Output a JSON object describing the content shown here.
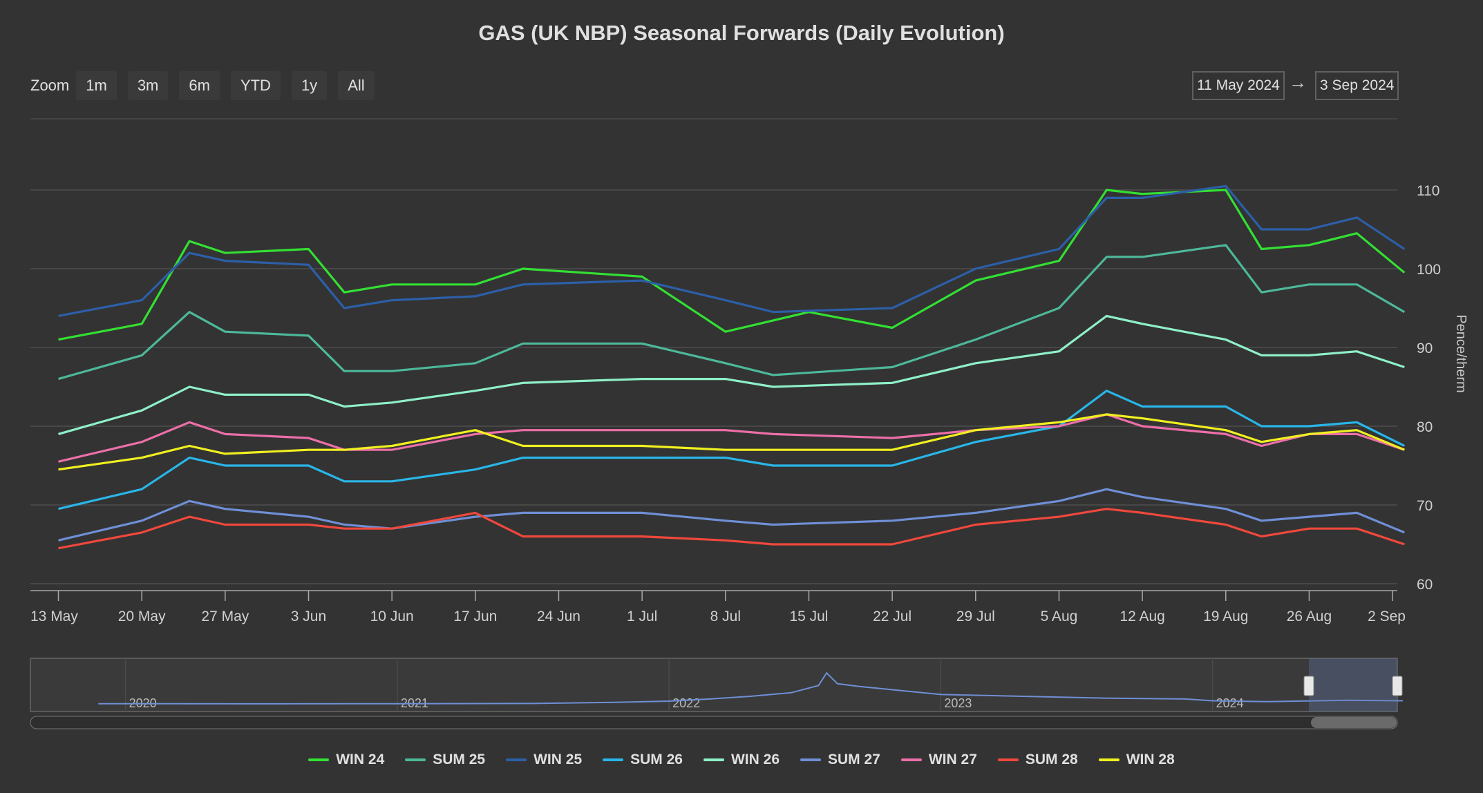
{
  "title": "GAS (UK NBP) Seasonal Forwards (Daily Evolution)",
  "zoom": {
    "label": "Zoom",
    "buttons": [
      "1m",
      "3m",
      "6m",
      "YTD",
      "1y",
      "All"
    ]
  },
  "range": {
    "from": "11 May 2024",
    "arrow": "→",
    "to": "3 Sep 2024"
  },
  "navigator": {
    "years": [
      "2020",
      "2021",
      "2022",
      "2023",
      "2024"
    ]
  },
  "chart_data": {
    "type": "line",
    "title": "GAS (UK NBP) Seasonal Forwards (Daily Evolution)",
    "xlabel": "",
    "ylabel": "Pence/therm",
    "ylim": [
      60,
      110
    ],
    "yticks": [
      60,
      70,
      80,
      90,
      100,
      110
    ],
    "xticks": [
      "13 May",
      "20 May",
      "27 May",
      "3 Jun",
      "10 Jun",
      "17 Jun",
      "24 Jun",
      "1 Jul",
      "8 Jul",
      "15 Jul",
      "22 Jul",
      "29 Jul",
      "5 Aug",
      "12 Aug",
      "19 Aug",
      "26 Aug",
      "2 Sep"
    ],
    "x_start": "11 May 2024",
    "x_end": "3 Sep 2024",
    "grid": true,
    "legend_position": "bottom",
    "series": [
      {
        "name": "WIN 24",
        "color": "#33e033",
        "points": [
          [
            "13 May",
            91
          ],
          [
            "20 May",
            93
          ],
          [
            "24 May",
            103.5
          ],
          [
            "27 May",
            102
          ],
          [
            "3 Jun",
            102.5
          ],
          [
            "6 Jun",
            97
          ],
          [
            "10 Jun",
            98
          ],
          [
            "17 Jun",
            98
          ],
          [
            "21 Jun",
            100
          ],
          [
            "1 Jul",
            99
          ],
          [
            "8 Jul",
            92
          ],
          [
            "15 Jul",
            94.5
          ],
          [
            "22 Jul",
            92.5
          ],
          [
            "29 Jul",
            98.5
          ],
          [
            "5 Aug",
            101
          ],
          [
            "9 Aug",
            110
          ],
          [
            "12 Aug",
            109.5
          ],
          [
            "19 Aug",
            110
          ],
          [
            "22 Aug",
            102.5
          ],
          [
            "26 Aug",
            103
          ],
          [
            "30 Aug",
            104.5
          ],
          [
            "3 Sep",
            99.5
          ]
        ]
      },
      {
        "name": "SUM 25",
        "color": "#4db89a",
        "points": [
          [
            "13 May",
            86
          ],
          [
            "20 May",
            89
          ],
          [
            "24 May",
            94.5
          ],
          [
            "27 May",
            92
          ],
          [
            "3 Jun",
            91.5
          ],
          [
            "6 Jun",
            87
          ],
          [
            "10 Jun",
            87
          ],
          [
            "17 Jun",
            88
          ],
          [
            "21 Jun",
            90.5
          ],
          [
            "1 Jul",
            90.5
          ],
          [
            "8 Jul",
            88
          ],
          [
            "12 Jul",
            86.5
          ],
          [
            "22 Jul",
            87.5
          ],
          [
            "29 Jul",
            91
          ],
          [
            "5 Aug",
            95
          ],
          [
            "9 Aug",
            101.5
          ],
          [
            "12 Aug",
            101.5
          ],
          [
            "19 Aug",
            103
          ],
          [
            "22 Aug",
            97
          ],
          [
            "26 Aug",
            98
          ],
          [
            "30 Aug",
            98
          ],
          [
            "3 Sep",
            94.5
          ]
        ]
      },
      {
        "name": "WIN 25",
        "color": "#2c5fa8",
        "points": [
          [
            "13 May",
            94
          ],
          [
            "20 May",
            96
          ],
          [
            "24 May",
            102
          ],
          [
            "27 May",
            101
          ],
          [
            "3 Jun",
            100.5
          ],
          [
            "6 Jun",
            95
          ],
          [
            "10 Jun",
            96
          ],
          [
            "17 Jun",
            96.5
          ],
          [
            "21 Jun",
            98
          ],
          [
            "1 Jul",
            98.5
          ],
          [
            "8 Jul",
            96
          ],
          [
            "12 Jul",
            94.5
          ],
          [
            "22 Jul",
            95
          ],
          [
            "29 Jul",
            100
          ],
          [
            "5 Aug",
            102.5
          ],
          [
            "9 Aug",
            109
          ],
          [
            "12 Aug",
            109
          ],
          [
            "19 Aug",
            110.5
          ],
          [
            "22 Aug",
            105
          ],
          [
            "26 Aug",
            105
          ],
          [
            "30 Aug",
            106.5
          ],
          [
            "3 Sep",
            102.5
          ]
        ]
      },
      {
        "name": "SUM 26",
        "color": "#29b6e8",
        "points": [
          [
            "13 May",
            69.5
          ],
          [
            "20 May",
            72
          ],
          [
            "24 May",
            76
          ],
          [
            "27 May",
            75
          ],
          [
            "3 Jun",
            75
          ],
          [
            "6 Jun",
            73
          ],
          [
            "10 Jun",
            73
          ],
          [
            "17 Jun",
            74.5
          ],
          [
            "21 Jun",
            76
          ],
          [
            "1 Jul",
            76
          ],
          [
            "8 Jul",
            76
          ],
          [
            "12 Jul",
            75
          ],
          [
            "22 Jul",
            75
          ],
          [
            "29 Jul",
            78
          ],
          [
            "5 Aug",
            80
          ],
          [
            "9 Aug",
            84.5
          ],
          [
            "12 Aug",
            82.5
          ],
          [
            "19 Aug",
            82.5
          ],
          [
            "22 Aug",
            80
          ],
          [
            "26 Aug",
            80
          ],
          [
            "30 Aug",
            80.5
          ],
          [
            "3 Sep",
            77.5
          ]
        ]
      },
      {
        "name": "WIN 26",
        "color": "#8ff0c8",
        "points": [
          [
            "13 May",
            79
          ],
          [
            "20 May",
            82
          ],
          [
            "24 May",
            85
          ],
          [
            "27 May",
            84
          ],
          [
            "3 Jun",
            84
          ],
          [
            "6 Jun",
            82.5
          ],
          [
            "10 Jun",
            83
          ],
          [
            "17 Jun",
            84.5
          ],
          [
            "21 Jun",
            85.5
          ],
          [
            "1 Jul",
            86
          ],
          [
            "8 Jul",
            86
          ],
          [
            "12 Jul",
            85
          ],
          [
            "22 Jul",
            85.5
          ],
          [
            "29 Jul",
            88
          ],
          [
            "5 Aug",
            89.5
          ],
          [
            "9 Aug",
            94
          ],
          [
            "12 Aug",
            93
          ],
          [
            "19 Aug",
            91
          ],
          [
            "22 Aug",
            89
          ],
          [
            "26 Aug",
            89
          ],
          [
            "30 Aug",
            89.5
          ],
          [
            "3 Sep",
            87.5
          ]
        ]
      },
      {
        "name": "SUM 27",
        "color": "#6f8fd6",
        "points": [
          [
            "13 May",
            65.5
          ],
          [
            "20 May",
            68
          ],
          [
            "24 May",
            70.5
          ],
          [
            "27 May",
            69.5
          ],
          [
            "3 Jun",
            68.5
          ],
          [
            "6 Jun",
            67.5
          ],
          [
            "10 Jun",
            67
          ],
          [
            "17 Jun",
            68.5
          ],
          [
            "21 Jun",
            69
          ],
          [
            "1 Jul",
            69
          ],
          [
            "8 Jul",
            68
          ],
          [
            "12 Jul",
            67.5
          ],
          [
            "22 Jul",
            68
          ],
          [
            "29 Jul",
            69
          ],
          [
            "5 Aug",
            70.5
          ],
          [
            "9 Aug",
            72
          ],
          [
            "12 Aug",
            71
          ],
          [
            "19 Aug",
            69.5
          ],
          [
            "22 Aug",
            68
          ],
          [
            "26 Aug",
            68.5
          ],
          [
            "30 Aug",
            69
          ],
          [
            "3 Sep",
            66.5
          ]
        ]
      },
      {
        "name": "WIN 27",
        "color": "#ec6fa8",
        "points": [
          [
            "13 May",
            75.5
          ],
          [
            "20 May",
            78
          ],
          [
            "24 May",
            80.5
          ],
          [
            "27 May",
            79
          ],
          [
            "3 Jun",
            78.5
          ],
          [
            "6 Jun",
            77
          ],
          [
            "10 Jun",
            77
          ],
          [
            "17 Jun",
            79
          ],
          [
            "21 Jun",
            79.5
          ],
          [
            "1 Jul",
            79.5
          ],
          [
            "8 Jul",
            79.5
          ],
          [
            "12 Jul",
            79
          ],
          [
            "22 Jul",
            78.5
          ],
          [
            "29 Jul",
            79.5
          ],
          [
            "5 Aug",
            80
          ],
          [
            "9 Aug",
            81.5
          ],
          [
            "12 Aug",
            80
          ],
          [
            "19 Aug",
            79
          ],
          [
            "22 Aug",
            77.5
          ],
          [
            "26 Aug",
            79
          ],
          [
            "30 Aug",
            79
          ],
          [
            "3 Sep",
            77
          ]
        ]
      },
      {
        "name": "SUM 28",
        "color": "#f0483c",
        "points": [
          [
            "13 May",
            64.5
          ],
          [
            "20 May",
            66.5
          ],
          [
            "24 May",
            68.5
          ],
          [
            "27 May",
            67.5
          ],
          [
            "3 Jun",
            67.5
          ],
          [
            "6 Jun",
            67
          ],
          [
            "10 Jun",
            67
          ],
          [
            "17 Jun",
            69
          ],
          [
            "21 Jun",
            66
          ],
          [
            "1 Jul",
            66
          ],
          [
            "8 Jul",
            65.5
          ],
          [
            "12 Jul",
            65
          ],
          [
            "22 Jul",
            65
          ],
          [
            "29 Jul",
            67.5
          ],
          [
            "5 Aug",
            68.5
          ],
          [
            "9 Aug",
            69.5
          ],
          [
            "12 Aug",
            69
          ],
          [
            "19 Aug",
            67.5
          ],
          [
            "22 Aug",
            66
          ],
          [
            "26 Aug",
            67
          ],
          [
            "30 Aug",
            67
          ],
          [
            "3 Sep",
            65
          ]
        ]
      },
      {
        "name": "WIN 28",
        "color": "#f0f020",
        "points": [
          [
            "13 May",
            74.5
          ],
          [
            "20 May",
            76
          ],
          [
            "24 May",
            77.5
          ],
          [
            "27 May",
            76.5
          ],
          [
            "3 Jun",
            77
          ],
          [
            "6 Jun",
            77
          ],
          [
            "10 Jun",
            77.5
          ],
          [
            "17 Jun",
            79.5
          ],
          [
            "21 Jun",
            77.5
          ],
          [
            "1 Jul",
            77.5
          ],
          [
            "8 Jul",
            77
          ],
          [
            "12 Jul",
            77
          ],
          [
            "22 Jul",
            77
          ],
          [
            "29 Jul",
            79.5
          ],
          [
            "5 Aug",
            80.5
          ],
          [
            "9 Aug",
            81.5
          ],
          [
            "12 Aug",
            81
          ],
          [
            "19 Aug",
            79.5
          ],
          [
            "22 Aug",
            78
          ],
          [
            "26 Aug",
            79
          ],
          [
            "30 Aug",
            79.5
          ],
          [
            "3 Sep",
            77
          ]
        ]
      }
    ]
  },
  "navigator_series": [
    [
      2019.9,
      0.9
    ],
    [
      2020.5,
      0.8
    ],
    [
      2021.0,
      0.9
    ],
    [
      2021.5,
      1.0
    ],
    [
      2021.8,
      1.6
    ],
    [
      2022.0,
      2.3
    ],
    [
      2022.15,
      3.5
    ],
    [
      2022.3,
      5.0
    ],
    [
      2022.45,
      7.0
    ],
    [
      2022.55,
      11.0
    ],
    [
      2022.58,
      18.0
    ],
    [
      2022.62,
      12.0
    ],
    [
      2022.7,
      10.5
    ],
    [
      2022.8,
      9.0
    ],
    [
      2022.9,
      7.5
    ],
    [
      2023.0,
      6.0
    ],
    [
      2023.3,
      5.0
    ],
    [
      2023.6,
      4.0
    ],
    [
      2023.9,
      3.5
    ],
    [
      2024.0,
      2.5
    ],
    [
      2024.2,
      2.0
    ],
    [
      2024.5,
      2.8
    ],
    [
      2024.7,
      2.5
    ]
  ]
}
